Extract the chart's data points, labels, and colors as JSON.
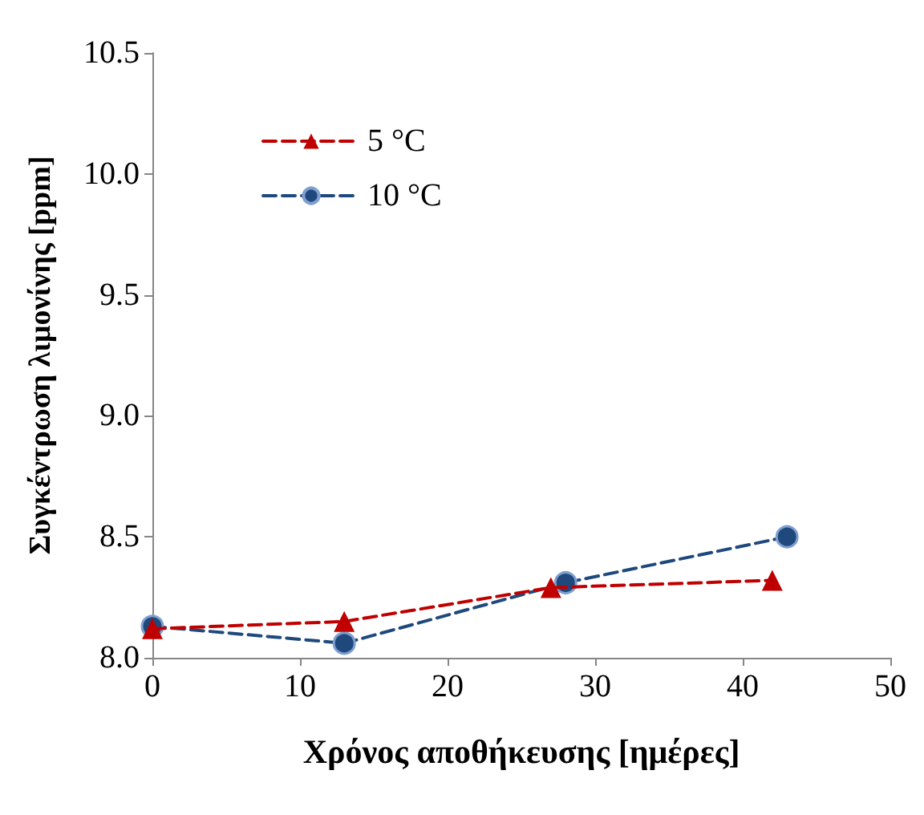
{
  "chart_data": {
    "type": "line",
    "xlabel": "Χρόνος αποθήκευσης [ημέρες]",
    "ylabel": "Συγκέντρωση λιμονίνης [ppm]",
    "xlim": [
      0,
      50
    ],
    "xticks": [
      0,
      10,
      20,
      30,
      40,
      50
    ],
    "ylim": [
      8.0,
      10.5
    ],
    "yticks": [
      {
        "value": 8.0,
        "label": "8.0"
      },
      {
        "value": 8.5,
        "label": "8.5"
      },
      {
        "value": 9.0,
        "label": "9.0"
      },
      {
        "value": 9.5,
        "label": "9.5"
      },
      {
        "value": 10.0,
        "label": "10.0"
      },
      {
        "value": 10.5,
        "label": "10.5"
      }
    ],
    "grid": false,
    "legend": "top left",
    "line_style": "dashed",
    "series": [
      {
        "name": "5 °C",
        "color": "#c00000",
        "marker": "triangle",
        "x": [
          0,
          13,
          27,
          42
        ],
        "values": [
          8.12,
          8.15,
          8.29,
          8.32
        ]
      },
      {
        "name": "10 °C",
        "color": "#1f497d",
        "marker": "circle",
        "x": [
          0,
          13,
          28,
          43
        ],
        "values": [
          8.13,
          8.06,
          8.31,
          8.5
        ]
      }
    ]
  }
}
